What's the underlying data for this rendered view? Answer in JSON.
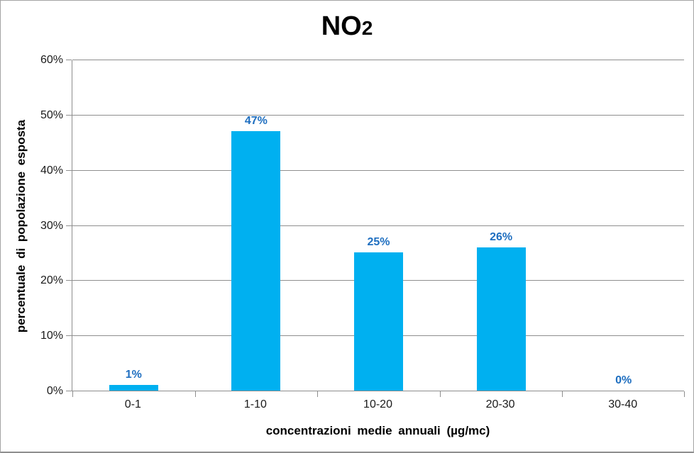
{
  "chart_data": {
    "type": "bar",
    "title": "NO2",
    "title_main": "NO",
    "title_sub": "2",
    "categories": [
      "0-1",
      "1-10",
      "10-20",
      "20-30",
      "30-40"
    ],
    "values": [
      1,
      47,
      25,
      26,
      0
    ],
    "data_labels": [
      "1%",
      "47%",
      "25%",
      "26%",
      "0%"
    ],
    "xlabel": "concentrazioni medie annuali (µg/mc)",
    "ylabel": "percentuale di popolazione esposta",
    "ylim": [
      0,
      60
    ],
    "yticks": [
      0,
      10,
      20,
      30,
      40,
      50,
      60
    ],
    "ytick_labels": [
      "0%",
      "10%",
      "20%",
      "30%",
      "40%",
      "50%",
      "60%"
    ],
    "grid": true,
    "legend": false,
    "bar_color": "#00B0F0",
    "data_label_color": "#1F6FC0",
    "gridline_color": "#8e8e8e"
  }
}
